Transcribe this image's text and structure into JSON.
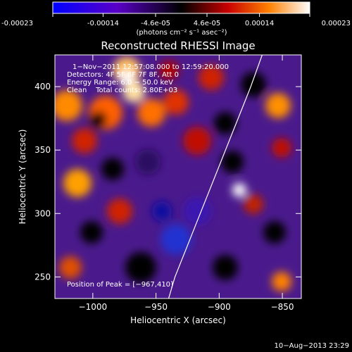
{
  "colorbar": {
    "tick_labels": [
      "-0.00023",
      "-0.00014",
      "-4.6e-05",
      "4.6e-05",
      "0.00014",
      "0.00023"
    ],
    "tick_values": [
      -0.00023,
      -0.00014,
      -4.6e-05,
      4.6e-05,
      0.00014,
      0.00023
    ],
    "range": [
      -0.00023,
      0.00023
    ],
    "unit_label": "(photons cm⁻² s⁻¹ asec⁻²)",
    "colors": [
      "#0000ff",
      "#5a00c8",
      "#000000",
      "#c80000",
      "#ff8000",
      "#ffffff"
    ]
  },
  "chart_data": {
    "type": "heatmap",
    "title": "Reconstructed RHESSI Image",
    "xlabel": "Heliocentric X (arcsec)",
    "ylabel": "Heliocentric Y (arcsec)",
    "xlim": [
      -1030,
      -835
    ],
    "ylim": [
      233,
      425
    ],
    "x_ticks": [
      -1000,
      -950,
      -900,
      -850
    ],
    "y_ticks": [
      250,
      300,
      350,
      400
    ],
    "x_tick_labels": [
      "−1000",
      "−950",
      "−900",
      "−850"
    ],
    "y_tick_labels": [
      "250",
      "300",
      "350",
      "400"
    ],
    "annotations": [
      "1−Nov−2011 12:57:08.000 to 12:59:20.000",
      "Detectors: 4F 5F 6F 7F 8F, Att 0",
      "Energy Range: 6.0 − 50.0 keV",
      "Clean    Total counts: 2.80E+03"
    ],
    "peak_label": "Position of Peak = [−967,410]",
    "peak_position": [
      -967,
      410
    ],
    "limb_curve": {
      "x": [
        -940,
        -935,
        -925,
        -915,
        -905,
        -895,
        -885,
        -875,
        -866
      ],
      "y": [
        233,
        250,
        275,
        300,
        325,
        350,
        375,
        400,
        425
      ]
    }
  },
  "footer": {
    "timestamp": "10−Aug−2013 23:29"
  }
}
